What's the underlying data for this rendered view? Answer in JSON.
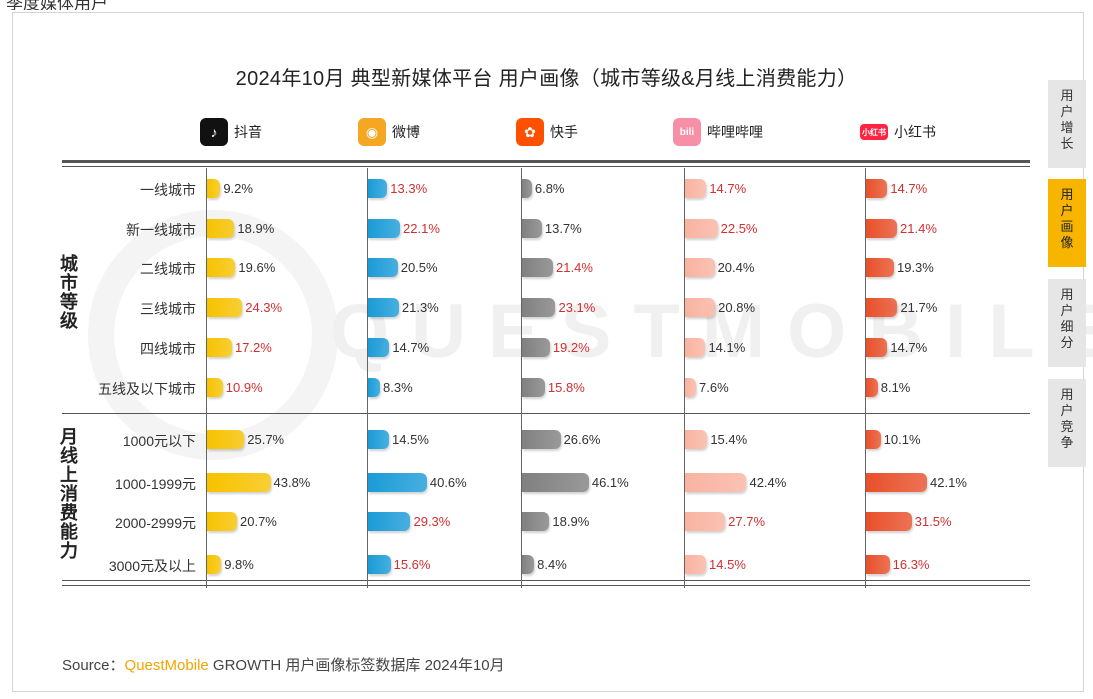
{
  "header_cut": "季度媒体用户",
  "title": "2024年10月 典型新媒体平台 用户画像（城市等级&月线上消费能力）",
  "platforms": [
    {
      "name": "抖音",
      "icon": "douyin-icon",
      "color": "#111111",
      "bar": "#f7c200",
      "highlight": "#d32f2f"
    },
    {
      "name": "微博",
      "icon": "weibo-icon",
      "color": "#f5a623",
      "bar": "#1a9bd7",
      "highlight": "#d32f2f"
    },
    {
      "name": "快手",
      "icon": "kuaishou-icon",
      "color": "#ff5000",
      "bar": "#808080",
      "highlight": "#d32f2f"
    },
    {
      "name": "哔哩哔哩",
      "icon": "bilibili-icon",
      "color": "#f78fa7",
      "bar": "#f9b3a0",
      "highlight": "#d32f2f"
    },
    {
      "name": "小红书",
      "icon": "xiaohongshu-icon",
      "color": "#ff2442",
      "bar": "#e8502a",
      "highlight": "#d32f2f"
    }
  ],
  "groups": [
    {
      "label": "城市等级",
      "rows": [
        "一线城市",
        "新一线城市",
        "二线城市",
        "三线城市",
        "四线城市",
        "五线及以下城市"
      ]
    },
    {
      "label": "月线上消费能力",
      "rows": [
        "1000元以下",
        "1000-1999元",
        "2000-2999元",
        "3000元及以上"
      ]
    }
  ],
  "chart_data": {
    "type": "bar",
    "title": "2024年10月 典型新媒体平台 用户画像（城市等级&月线上消费能力）",
    "categories": [
      "一线城市",
      "新一线城市",
      "二线城市",
      "三线城市",
      "四线城市",
      "五线及以下城市",
      "1000元以下",
      "1000-1999元",
      "2000-2999元",
      "3000元及以上"
    ],
    "unit": "%",
    "series": [
      {
        "name": "抖音",
        "values": [
          9.2,
          18.9,
          19.6,
          24.3,
          17.2,
          10.9,
          25.7,
          43.8,
          20.7,
          9.8
        ],
        "labels": [
          "9.2%",
          "18.9%",
          "19.6%",
          "24.3%",
          "17.2%",
          "10.9%",
          "25.7%",
          "43.8%",
          "20.7%",
          "9.8%"
        ],
        "highlighted": [
          false,
          false,
          false,
          true,
          true,
          true,
          false,
          false,
          false,
          false
        ]
      },
      {
        "name": "微博",
        "values": [
          13.3,
          22.1,
          20.5,
          21.3,
          14.7,
          8.3,
          14.5,
          40.6,
          29.3,
          15.6
        ],
        "labels": [
          "13.3%",
          "22.1%",
          "20.5%",
          "21.3%",
          "14.7%",
          "8.3%",
          "14.5%",
          "40.6%",
          "29.3%",
          "15.6%"
        ],
        "highlighted": [
          true,
          true,
          false,
          false,
          false,
          false,
          false,
          false,
          true,
          true
        ]
      },
      {
        "name": "快手",
        "values": [
          6.8,
          13.7,
          21.4,
          23.1,
          19.2,
          15.8,
          26.6,
          46.1,
          18.9,
          8.4
        ],
        "labels": [
          "6.8%",
          "13.7%",
          "21.4%",
          "23.1%",
          "19.2%",
          "15.8%",
          "26.6%",
          "46.1%",
          "18.9%",
          "8.4%"
        ],
        "highlighted": [
          false,
          false,
          true,
          true,
          true,
          true,
          false,
          false,
          false,
          false
        ]
      },
      {
        "name": "哔哩哔哩",
        "values": [
          14.7,
          22.5,
          20.4,
          20.8,
          14.1,
          7.6,
          15.4,
          42.4,
          27.7,
          14.5
        ],
        "labels": [
          "14.7%",
          "22.5%",
          "20.4%",
          "20.8%",
          "14.1%",
          "7.6%",
          "15.4%",
          "42.4%",
          "27.7%",
          "14.5%"
        ],
        "highlighted": [
          true,
          true,
          false,
          false,
          false,
          false,
          false,
          false,
          true,
          true
        ]
      },
      {
        "name": "小红书",
        "values": [
          14.7,
          21.4,
          19.3,
          21.7,
          14.7,
          8.1,
          10.1,
          42.1,
          31.5,
          16.3
        ],
        "labels": [
          "14.7%",
          "21.4%",
          "19.3%",
          "21.7%",
          "14.7%",
          "8.1%",
          "10.1%",
          "42.1%",
          "31.5%",
          "16.3%"
        ],
        "highlighted": [
          true,
          true,
          false,
          false,
          false,
          false,
          false,
          false,
          true,
          true
        ]
      }
    ]
  },
  "tabs": [
    {
      "label": "用户增长",
      "active": false
    },
    {
      "label": "用户画像",
      "active": true
    },
    {
      "label": "用户细分",
      "active": false
    },
    {
      "label": "用户竞争",
      "active": false
    }
  ],
  "watermark": "QUESTMOBILE",
  "source": {
    "prefix": "Source：",
    "brand": "QuestMobile",
    "rest": " GROWTH 用户画像标签数据库 2024年10月"
  }
}
